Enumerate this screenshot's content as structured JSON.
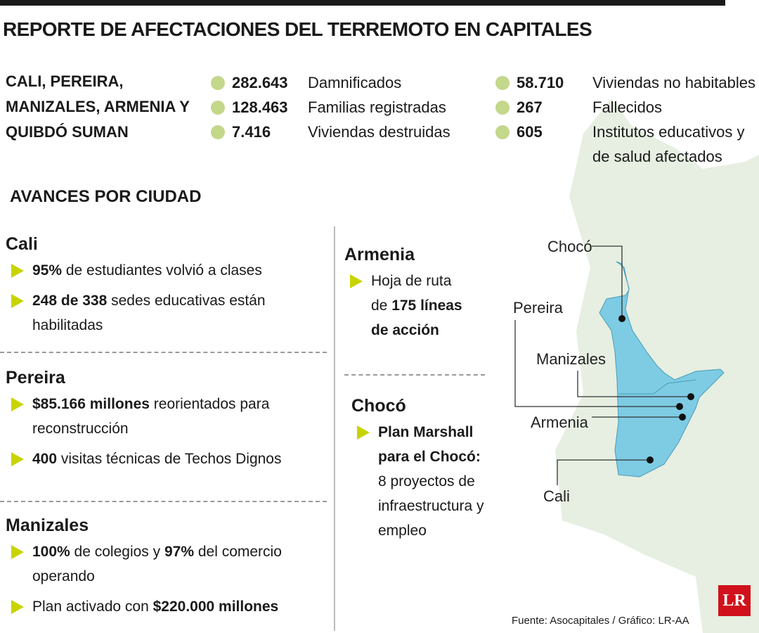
{
  "title": "REPORTE DE AFECTACIONES DEL TERREMOTO EN CAPITALES",
  "summary": {
    "heading": "CALI, PEREIRA, MANIZALES, ARMENIA Y QUIBDÓ SUMAN",
    "stats": [
      {
        "value": "282.643",
        "label": "Damnificados"
      },
      {
        "value": "128.463",
        "label": "Familias registradas"
      },
      {
        "value": "7.416",
        "label": "Viviendas destruidas"
      },
      {
        "value": "58.710",
        "label": "Viviendas no habitables"
      },
      {
        "value": "267",
        "label": "Fallecidos"
      },
      {
        "value": "605",
        "label": "Institutos educativos y de salud afectados"
      }
    ]
  },
  "section_title": "AVANCES POR CIUDAD",
  "cities": [
    {
      "name": "Cali",
      "items": [
        [
          {
            "bold": "95%"
          },
          {
            "text": " de estudiantes volvió a clases"
          }
        ],
        [
          {
            "bold": "248 de 338"
          },
          {
            "text": " sedes educativas están habilitadas"
          }
        ]
      ]
    },
    {
      "name": "Pereira",
      "items": [
        [
          {
            "bold": "$85.166 millones"
          },
          {
            "text": " reorientados para reconstrucción"
          }
        ],
        [
          {
            "bold": "400"
          },
          {
            "text": " visitas técnicas de Techos Dignos"
          }
        ]
      ]
    },
    {
      "name": "Manizales",
      "items": [
        [
          {
            "bold": "100%"
          },
          {
            "text": " de colegios y "
          },
          {
            "bold": "97%"
          },
          {
            "text": " del comercio operando"
          }
        ],
        [
          {
            "text": "Plan activado con "
          },
          {
            "bold": "$220.000 millones"
          }
        ]
      ]
    },
    {
      "name": "Armenia",
      "items": [
        [
          {
            "text": "Hoja de ruta de "
          },
          {
            "bold": "175 líneas de acción"
          }
        ]
      ]
    },
    {
      "name": "Chocó",
      "items": [
        [
          {
            "bold": "Plan Marshall para el Chocó:"
          },
          {
            "text": " 8 proyectos de infraestructura y empleo"
          }
        ]
      ]
    }
  ],
  "map": {
    "labels": [
      "Chocó",
      "Pereira",
      "Manizales",
      "Armenia",
      "Cali"
    ]
  },
  "source": "Fuente: Asocapitales / Gráfico: LR-AA",
  "logo": "LR"
}
